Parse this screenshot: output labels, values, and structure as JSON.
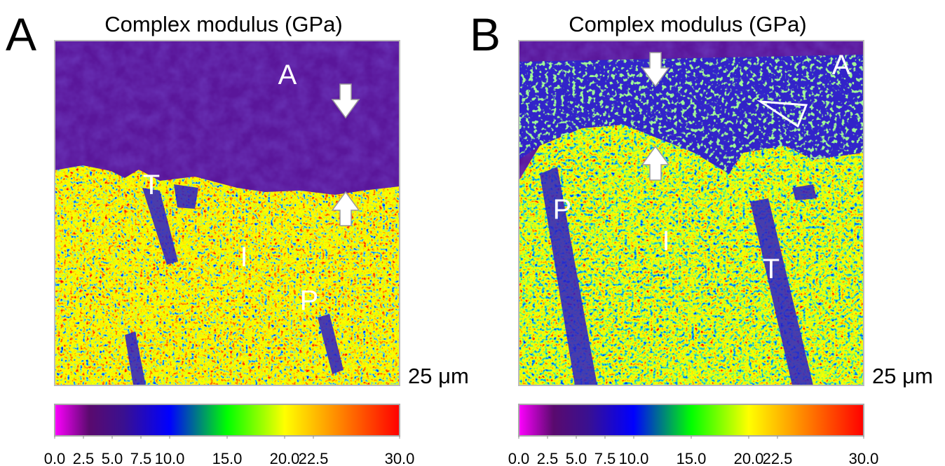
{
  "panels": [
    {
      "letter": "A",
      "title": "Complex modulus (GPa)",
      "scale_bar": "25 μm",
      "labels": [
        "A",
        "T",
        "I",
        "P"
      ],
      "colorbar": {
        "lim": [
          0,
          30
        ],
        "ticks": [
          {
            "value": 0,
            "label": "0.0"
          },
          {
            "value": 2.5,
            "label": "2.5"
          },
          {
            "value": 5,
            "label": "5.0"
          },
          {
            "value": 7.5,
            "label": "7.5"
          },
          {
            "value": 10,
            "label": "10.0"
          },
          {
            "value": 15,
            "label": "15.0"
          },
          {
            "value": 20,
            "label": "20.0"
          },
          {
            "value": 22.5,
            "label": "22.5"
          },
          {
            "value": 30,
            "label": "30.0"
          }
        ],
        "stops": [
          {
            "value": 0,
            "color": "#ff00ff"
          },
          {
            "value": 3,
            "color": "#5a0a6e"
          },
          {
            "value": 6,
            "color": "#3a1090"
          },
          {
            "value": 10,
            "color": "#0000ff"
          },
          {
            "value": 15,
            "color": "#00ff00"
          },
          {
            "value": 20,
            "color": "#ffff00"
          },
          {
            "value": 24,
            "color": "#ff9900"
          },
          {
            "value": 30,
            "color": "#ff0000"
          }
        ]
      }
    },
    {
      "letter": "B",
      "title": "Complex modulus (GPa)",
      "scale_bar": "25 μm",
      "labels": [
        "A",
        "P",
        "I",
        "T"
      ],
      "colorbar": {
        "lim": [
          0,
          30
        ],
        "ticks": [
          {
            "value": 0,
            "label": "0.0"
          },
          {
            "value": 2.5,
            "label": "2.5"
          },
          {
            "value": 5,
            "label": "5.0"
          },
          {
            "value": 7.5,
            "label": "7.5"
          },
          {
            "value": 10,
            "label": "10.0"
          },
          {
            "value": 15,
            "label": "15.0"
          },
          {
            "value": 20,
            "label": "20.0"
          },
          {
            "value": 22.5,
            "label": "22.5"
          },
          {
            "value": 30,
            "label": "30.0"
          }
        ],
        "stops": [
          {
            "value": 0,
            "color": "#ff00ff"
          },
          {
            "value": 3,
            "color": "#5a0a6e"
          },
          {
            "value": 6,
            "color": "#3a1090"
          },
          {
            "value": 10,
            "color": "#0000ff"
          },
          {
            "value": 15,
            "color": "#00ff00"
          },
          {
            "value": 20,
            "color": "#ffff00"
          },
          {
            "value": 24,
            "color": "#ff9900"
          },
          {
            "value": 30,
            "color": "#ff0000"
          }
        ]
      }
    }
  ]
}
